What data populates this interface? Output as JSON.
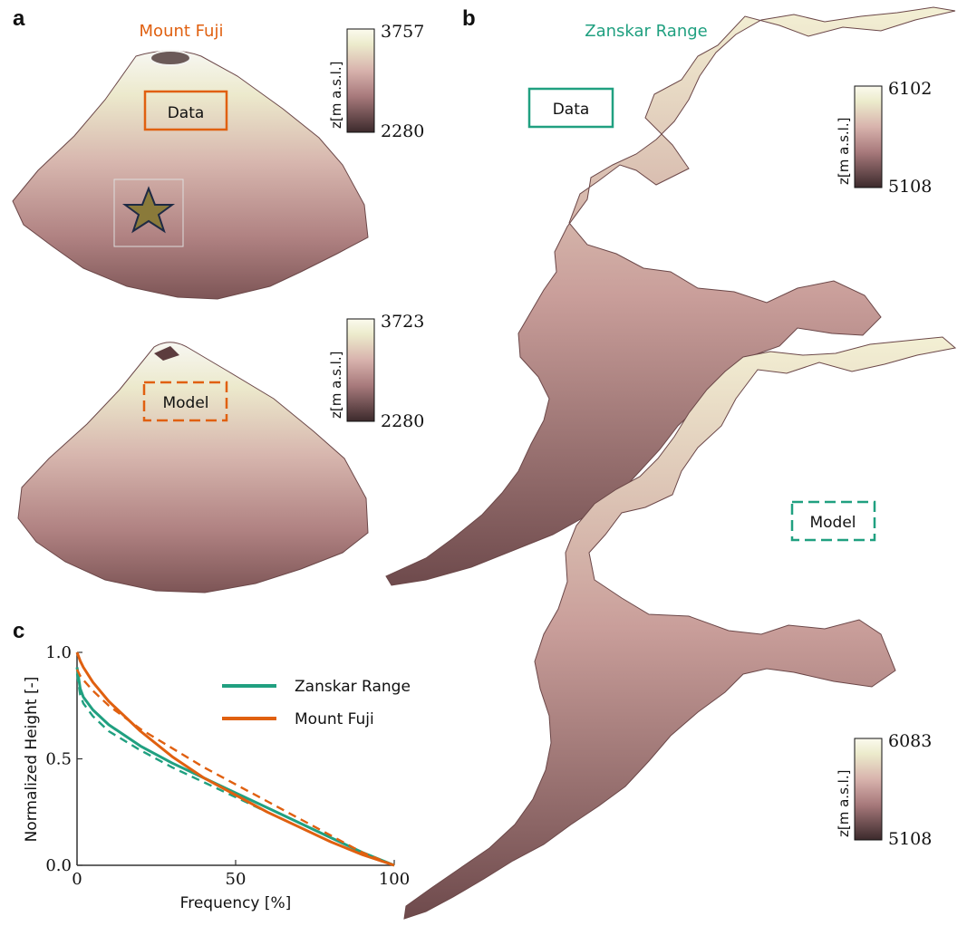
{
  "panels": {
    "a": {
      "letter": "a",
      "title": "Mount Fuji",
      "data_label": "Data",
      "model_label": "Model",
      "colorbar_data": {
        "label": "z[m a.s.l.]",
        "max": "3757",
        "min": "2280"
      },
      "colorbar_model": {
        "label": "z[m a.s.l.]",
        "max": "3723",
        "min": "2280"
      }
    },
    "b": {
      "letter": "b",
      "title": "Zanskar Range",
      "data_label": "Data",
      "model_label": "Model",
      "colorbar_data": {
        "label": "z[m a.s.l.]",
        "max": "6102",
        "min": "5108"
      },
      "colorbar_model": {
        "label": "z[m a.s.l.]",
        "max": "6083",
        "min": "5108"
      }
    },
    "c": {
      "letter": "c"
    }
  },
  "colors": {
    "fuji": "#e06010",
    "zanskar": "#20a080",
    "terrain_low": "#5a3a3c",
    "terrain_mid": "#c99a98",
    "terrain_high": "#f6f3dc"
  },
  "chart_data": {
    "type": "line",
    "xlabel": "Frequency [%]",
    "ylabel": "Normalized Height [-]",
    "xlim": [
      0,
      100
    ],
    "ylim": [
      0,
      1
    ],
    "xticks": [
      "0",
      "50",
      "100"
    ],
    "yticks": [
      "0.0",
      "0.5",
      "1.0"
    ],
    "legend_position": "top-right",
    "series": [
      {
        "name": "Zanskar Range",
        "style": "solid",
        "color": "#20a080",
        "x": [
          0,
          1,
          2,
          5,
          10,
          20,
          30,
          40,
          50,
          60,
          70,
          80,
          90,
          100
        ],
        "y": [
          0.93,
          0.83,
          0.79,
          0.73,
          0.66,
          0.56,
          0.48,
          0.41,
          0.34,
          0.27,
          0.2,
          0.13,
          0.06,
          0.0
        ]
      },
      {
        "name": "",
        "style": "dashed",
        "color": "#20a080",
        "x": [
          0,
          1,
          2,
          5,
          10,
          20,
          30,
          40,
          50,
          60,
          70,
          80,
          90,
          100
        ],
        "y": [
          0.9,
          0.8,
          0.76,
          0.7,
          0.63,
          0.54,
          0.46,
          0.39,
          0.32,
          0.25,
          0.18,
          0.11,
          0.05,
          0.0
        ]
      },
      {
        "name": "Mount Fuji",
        "style": "solid",
        "color": "#e06010",
        "x": [
          0,
          1,
          2,
          5,
          10,
          20,
          30,
          40,
          50,
          60,
          70,
          80,
          90,
          100
        ],
        "y": [
          1.0,
          0.96,
          0.93,
          0.86,
          0.77,
          0.63,
          0.51,
          0.41,
          0.33,
          0.25,
          0.18,
          0.11,
          0.05,
          0.0
        ]
      },
      {
        "name": "",
        "style": "dashed",
        "color": "#e06010",
        "x": [
          0,
          1,
          2,
          5,
          10,
          20,
          30,
          40,
          50,
          60,
          70,
          80,
          90,
          100
        ],
        "y": [
          0.92,
          0.89,
          0.87,
          0.82,
          0.75,
          0.64,
          0.55,
          0.46,
          0.38,
          0.3,
          0.22,
          0.14,
          0.06,
          0.0
        ]
      }
    ]
  }
}
